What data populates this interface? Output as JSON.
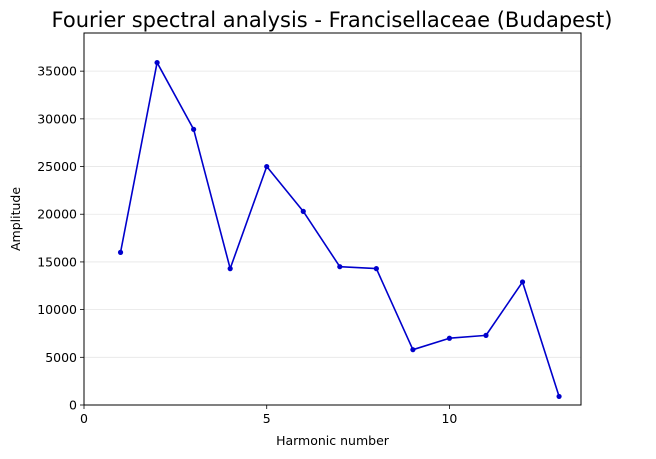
{
  "chart_data": {
    "type": "line",
    "title": "Fourier spectral analysis - Francisellaceae (Budapest)",
    "xlabel": "Harmonic number",
    "ylabel": "Amplitude",
    "xlim": [
      0,
      13.6
    ],
    "ylim": [
      0,
      39000
    ],
    "xticks": [
      0,
      5,
      10
    ],
    "yticks": [
      0,
      5000,
      10000,
      15000,
      20000,
      25000,
      30000,
      35000
    ],
    "grid": "horizontal",
    "legend": "none",
    "series": [
      {
        "color": "#0000cc",
        "marker": "circle",
        "x": [
          1,
          2,
          3,
          4,
          5,
          6,
          7,
          8,
          9,
          10,
          11,
          12,
          13
        ],
        "y": [
          16000,
          35900,
          28900,
          14300,
          25000,
          20300,
          14500,
          14300,
          5800,
          7000,
          7300,
          12900,
          900
        ]
      }
    ]
  }
}
